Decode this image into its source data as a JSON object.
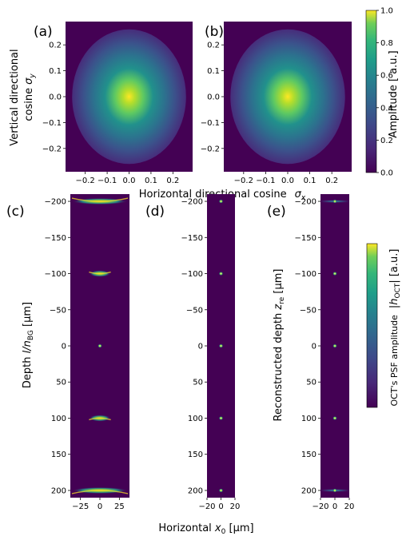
{
  "colors": {
    "viridis_low": "#440154",
    "viridis_mid": "#21918c",
    "viridis_high": "#fde725",
    "background_low": "#440154"
  },
  "panels": {
    "a": {
      "label": "(a)"
    },
    "b": {
      "label": "(b)"
    },
    "c": {
      "label": "(c)"
    },
    "d": {
      "label": "(d)"
    },
    "e": {
      "label": "(e)"
    }
  },
  "top_row": {
    "ylabel_line1": "Vertical directional",
    "ylabel_line2": "cosine",
    "ylabel_sym": "σ",
    "ylabel_sub": "y",
    "xlabel": "Horizontal directional cosine",
    "xlabel_sym": "σ",
    "xlabel_sub": "x",
    "colorbar_label": "Amplitude [ a.u.]",
    "colorbar_ticks": [
      "0.0",
      "0.2",
      "0.4",
      "0.6",
      "0.8",
      "1.0"
    ]
  },
  "bottom_row": {
    "ylabel_left_prefix": "Depth ",
    "ylabel_left_sym": "l/n",
    "ylabel_left_sub": "BG",
    "ylabel_left_unit": " [μm]",
    "ylabel_right_prefix": "Reconstructed depth  ",
    "ylabel_right_sym": "z",
    "ylabel_right_sub": "re",
    "ylabel_right_unit": " [μm]",
    "xlabel_prefix": "Horizontal  ",
    "xlabel_sym": "x",
    "xlabel_sub": "0",
    "xlabel_unit": " [μm]",
    "colorbar_label_left": "OCT's PSF amplitude",
    "colorbar_label_sym": "|h",
    "colorbar_label_sub": "OCT",
    "colorbar_label_right": "| [a.u.]"
  },
  "chart_data": [
    {
      "type": "heatmap",
      "panel": "(a)",
      "description_of_content": "circular pupil amplitude, peak at center",
      "x_ticks": [
        "-0.2",
        "-0.1",
        "0.0",
        "0.1",
        "0.2"
      ],
      "y_ticks": [
        "0.2",
        "0.1",
        "0.0",
        "-0.1",
        "-0.2"
      ],
      "xlim": [
        -0.29,
        0.29
      ],
      "ylim": [
        -0.29,
        0.29
      ],
      "aperture_radius": 0.26,
      "peak_amplitude": 1.0
    },
    {
      "type": "heatmap",
      "panel": "(b)",
      "x_ticks": [
        "-0.2",
        "-0.1",
        "0.0",
        "0.1",
        "0.2"
      ],
      "xlim": [
        -0.29,
        0.29
      ],
      "ylim": [
        -0.29,
        0.29
      ],
      "aperture_radius": 0.26,
      "peak_amplitude": 1.0
    },
    {
      "type": "heatmap",
      "panel": "(c)",
      "x_ticks": [
        "-25",
        "0",
        "25"
      ],
      "y_ticks": [
        "-200",
        "-150",
        "-100",
        "-50",
        "0",
        "50",
        "100",
        "150",
        "200"
      ],
      "xlim": [
        -38,
        38
      ],
      "ylim": [
        -210,
        210
      ],
      "spots": [
        {
          "depth": -200,
          "half_width_um": 36,
          "curve": 4
        },
        {
          "depth": -100,
          "half_width_um": 14,
          "curve": 2
        },
        {
          "depth": 0,
          "half_width_um": 2,
          "curve": 0
        },
        {
          "depth": 100,
          "half_width_um": 14,
          "curve": -2
        },
        {
          "depth": 200,
          "half_width_um": 36,
          "curve": -4
        }
      ]
    },
    {
      "type": "heatmap",
      "panel": "(d)",
      "x_ticks": [
        "-20",
        "0",
        "20"
      ],
      "y_ticks": [
        "-200",
        "-150",
        "-100",
        "-50",
        "0",
        "50",
        "100",
        "150",
        "200"
      ],
      "xlim": [
        -20,
        20
      ],
      "ylim": [
        -210,
        210
      ],
      "spots": [
        {
          "depth": -200,
          "half_width_um": 2
        },
        {
          "depth": -100,
          "half_width_um": 2
        },
        {
          "depth": 0,
          "half_width_um": 2
        },
        {
          "depth": 100,
          "half_width_um": 2
        },
        {
          "depth": 200,
          "half_width_um": 2
        }
      ]
    },
    {
      "type": "heatmap",
      "panel": "(e)",
      "x_ticks": [
        "-20",
        "0",
        "20"
      ],
      "y_ticks": [
        "-200",
        "-150",
        "-100",
        "-50",
        "0",
        "50",
        "100",
        "150",
        "200"
      ],
      "xlim": [
        -20,
        20
      ],
      "ylim": [
        -210,
        210
      ],
      "spots": [
        {
          "depth": -200,
          "half_width_um": 2
        },
        {
          "depth": -100,
          "half_width_um": 2
        },
        {
          "depth": 0,
          "half_width_um": 2
        },
        {
          "depth": 100,
          "half_width_um": 2
        },
        {
          "depth": 200,
          "half_width_um": 2
        }
      ],
      "streaks": [
        -200,
        200
      ]
    }
  ]
}
